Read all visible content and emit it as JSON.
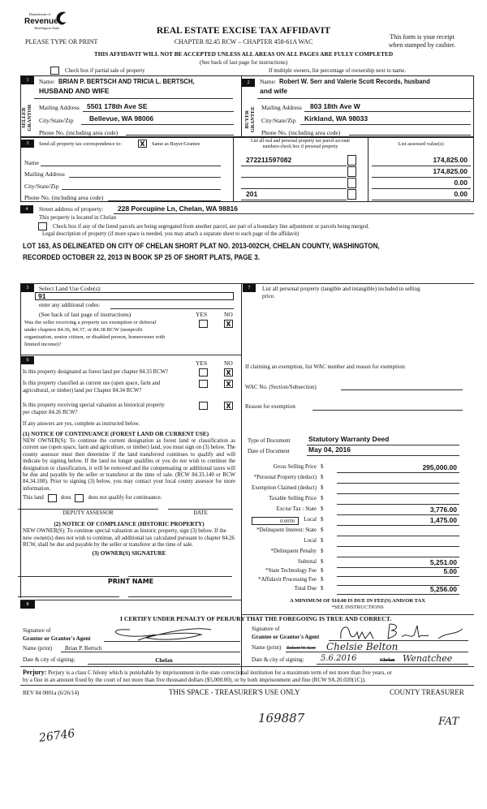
{
  "logo": {
    "line1": "Department of",
    "line2": "Revenue",
    "line3": "Washington State"
  },
  "header": {
    "title": "REAL ESTATE EXCISE TAX AFFIDAVIT",
    "type_print": "PLEASE TYPE OR PRINT",
    "chapter": "CHAPTER 82.45 RCW – CHAPTER 458-61A WAC",
    "receipt1": "This form is your receipt",
    "receipt2": "when stamped by cashier.",
    "warning": "THIS AFFIDAVIT WILL NOT BE ACCEPTED UNLESS ALL AREAS ON ALL PAGES ARE FULLY COMPLETED",
    "see_back": "(See back of last page for instructions)",
    "partial_sale": "Check box if partial sale of property",
    "multiple_owners": "If multiple owners, list percentage of ownership next to name."
  },
  "seller": {
    "num": "1",
    "side_label1": "SELLER",
    "side_label2": "GRANTOR",
    "name_label": "Name:",
    "name1": "BRIAN P. BERTSCH AND TRICIA L. BERTSCH,",
    "name2": "HUSBAND AND WIFE",
    "mailing_label": "Mailing Address",
    "mailing": "5501 178th Ave SE",
    "city_label": "City/State/Zip",
    "city": "Bellevue, WA 98006",
    "phone_label": "Phone No. (including area code)"
  },
  "buyer": {
    "num": "2",
    "side_label1": "BUYER",
    "side_label2": "GRANTEE",
    "name_label": "Name:",
    "name1": "Robert W. Serr and Valerie Scott Records, husband",
    "name2": "and wife",
    "mailing_label": "Mailing Address",
    "mailing": "803 18th Ave W",
    "city_label": "City/State/Zip",
    "city": "Kirkland, WA 98033",
    "phone_label": "Phone No. (including area code)"
  },
  "section3": {
    "num": "3",
    "send_label": "Send all property tax correspondence to:",
    "same_checked": "X",
    "same_label": "Same as Buyer/Grantee",
    "parcel_header1": "List all real and personal property tax parcel account",
    "parcel_header2": "numbers-check box if personal property",
    "assessed_header": "List assessed value(s)",
    "name_label": "Name",
    "mailing_label": "Mailing Address",
    "city_label": "City/State/Zip",
    "phone_label": "Phone No. (including area code)",
    "parcels": [
      "272211597082",
      "",
      "",
      "201"
    ],
    "assessed": [
      "174,825.00",
      "174,825.00",
      "0.00",
      "0.00"
    ]
  },
  "section4": {
    "num": "4",
    "street_label": "Street address of property:",
    "street": "228 Porcupine Ln, Chelan, WA 98816",
    "located": "This property is located in Chelan",
    "segregated": "Check box if any of the listed parcels are being segregated from another parcel, are part of a boundary line adjustment or parcels being merged.",
    "legal_label": "Legal description of property (if more space is needed, you may attach a separate sheet to each page of the affidavit)",
    "legal1": "LOT 163, AS DELINEATED ON CITY OF CHELAN SHORT PLAT NO. 2013-002CH, CHELAN COUNTY, WASHINGTON,",
    "legal2": "RECORDED OCTOBER 22, 2013 IN BOOK SP 25 OF SHORT PLATS, PAGE 3."
  },
  "section5": {
    "num": "5",
    "label": "Select Land Use Code(s):",
    "code": "91",
    "additional": "enter any additional codes:",
    "see_back": "(See back of last page of instructions)",
    "yes": "YES",
    "no": "NO",
    "question": [
      "Was the seller receiving a property tax exemption or deferral",
      "under chapters 84.36, 84.37, or 84.38 RCW (nonprofit",
      "organization, senior citizen, or disabled person, homeowner with",
      "limited income)?"
    ],
    "answer_no": "X"
  },
  "section6": {
    "num": "6",
    "yes": "YES",
    "no": "NO",
    "q1": "Is this property designated as forest land per chapter 84.33 RCW?",
    "q2a": "Is this property classified as current use (open space, farm and",
    "q2b": "agricultural, or timber) land per Chapter 84.34 RCW?",
    "q3a": "Is this property receiving special valuation as historical property",
    "q3b": "per chapter 84.26 RCW?",
    "answers_no": [
      "X",
      "X",
      "X"
    ],
    "if_yes": "If any answers are yes, complete as instructed below.",
    "notice1_title": "(1) NOTICE OF CONTINUANCE (FOREST LAND OR CURRENT USE)",
    "notice1_text": "NEW OWNER(S): To continue the current designation as forest land or classification as current use (open space, farm and agriculture, or timber) land, you must sign on (3) below. The county assessor must then determine if the land transferred continues to qualify and will indicate by signing below. If the land no longer qualifies or you do not wish to continue the designation or classification, it will be removed and the compensating or additional taxes will be due and payable by the seller or transferor at the time of sale. (RCW 84.33.140 or RCW 84.34.108). Prior to signing (3) below, you may contact your local county assessor for more information.",
    "this_land": "This land",
    "does": "does",
    "does_not": "does not qualify for continuance.",
    "deputy": "DEPUTY ASSESSOR",
    "date": "DATE",
    "notice2_title": "(2) NOTICE OF COMPLIANCE (HISTORIC PROPERTY)",
    "notice2_text": "NEW OWNER(S): To continue special valuation as historic property, sign (3) below. If the new owner(s) does not wish to continue, all additional tax calculated pursuant to chapter 84.26 RCW, shall be due and payable by the seller or transferor at the time of sale.",
    "owner_sig": "(3) OWNER(S) SIGNATURE",
    "print_name": "PRINT NAME"
  },
  "section7": {
    "num": "7",
    "label1": "List all personal property (tangible and intangible) included in selling",
    "label2": "price.",
    "exemption": "If claiming an exemption, list WAC number and reason for exemption:",
    "wac_label": "WAC No. (Section/Subsection)",
    "reason_label": "Reason for exemption"
  },
  "document": {
    "type_label": "Type of Document",
    "type": "Statutory Warranty Deed",
    "date_label": "Date of Document",
    "date": "May 04, 2016",
    "local_rate": "0.0050",
    "rows": [
      {
        "label": "Gross Selling Price",
        "value": "295,000.00"
      },
      {
        "label": "*Personal Property (deduct)",
        "value": ""
      },
      {
        "label": "Exemption Claimed (deduct)",
        "value": ""
      },
      {
        "label": "Taxable Selling Price",
        "value": ""
      },
      {
        "label": "Excise Tax :   State",
        "value": "3,776.00"
      },
      {
        "label": "Local",
        "value": "1,475.00"
      },
      {
        "label": "*Delinquent Interest:   State",
        "value": ""
      },
      {
        "label": "Local",
        "value": ""
      },
      {
        "label": "*Delinquent Penalty",
        "value": ""
      },
      {
        "label": "Subtotal",
        "value": "5,251.00"
      },
      {
        "label": "*State Technology Fee",
        "value": "5.00"
      },
      {
        "label": "*Affidavit Processing Fee",
        "value": ""
      },
      {
        "label": "Total Due",
        "value": "5,256.00"
      }
    ],
    "currency": "$",
    "minimum": "A MINIMUM OF $10.00 IS DUE IN FEE(S) AND/OR TAX",
    "see_instructions": "*SEE INSTRUCTIONS"
  },
  "section8": {
    "num": "8",
    "certify": "I CERTIFY UNDER PENALTY OF PERJURY THAT THE FOREGOING IS TRUE AND CORRECT.",
    "grantor_sig1": "Signature of",
    "grantor_sig2": "Grantor or Grantor's Agent",
    "grantor_name_label": "Name (print)",
    "grantor_name": "Brian P. Bertsch",
    "grantor_date_label": "Date & city of signing:",
    "grantor_city": "Chelan",
    "grantee_sig1": "Signature of",
    "grantee_sig2": "Grantee or Grantor's Agent",
    "grantee_name_label": "Name (print)",
    "grantee_name_struck": "Robert W. Serr",
    "grantee_name": "Chelsie Belton",
    "grantee_date_label": "Date & city of signing:",
    "grantee_date": "5.6.2016",
    "grantee_city_struck": "Chelan",
    "grantee_city": "Wenatchee",
    "perjury_bold": "Perjury:",
    "perjury1": "Perjury is a class C felony which is punishable by imprisonment in the state correctional institution for a maximum term of not more than five years, or",
    "perjury2": "by a fine in an amount fixed by the court of not more than five thousand dollars ($5,000.00), or by both imprisonment and fine (RCW 9A.20.020(1C))."
  },
  "footer": {
    "rev": "REV 84 0001a (6/26/14)",
    "treasurer_space": "THIS SPACE - TREASURER'S USE ONLY",
    "county": "COUNTY TREASURER",
    "hw_left": "26746",
    "hw_center": "169887",
    "hw_right": "FAT"
  }
}
